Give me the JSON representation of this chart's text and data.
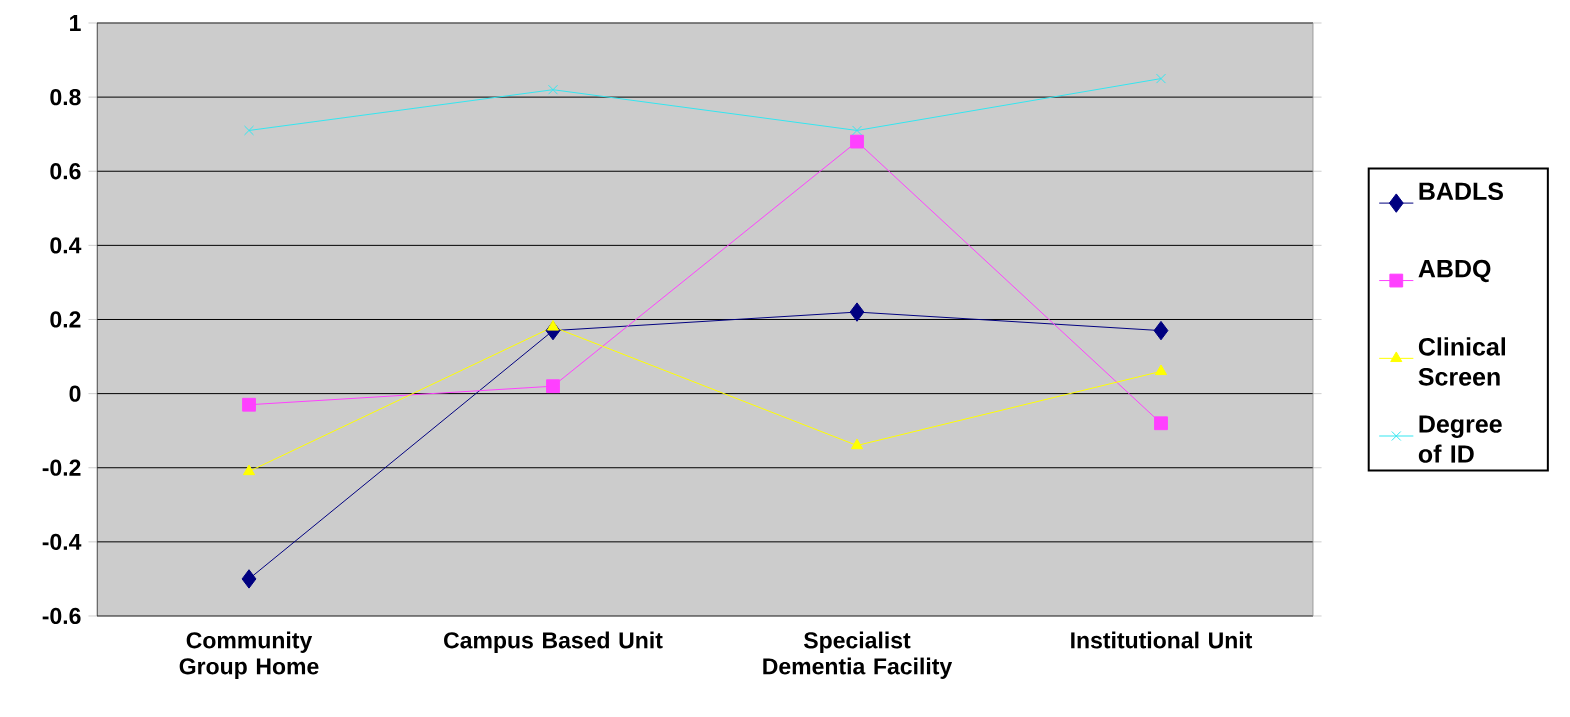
{
  "chart_data": {
    "type": "line",
    "categories": [
      "Community Group Home",
      "Campus Based Unit",
      "Specialist Dementia Facility",
      "Institutional Unit"
    ],
    "series": [
      {
        "name": "BADLS",
        "color": "#000080",
        "marker": "diamond",
        "values": [
          -0.5,
          0.17,
          0.22,
          0.17
        ]
      },
      {
        "name": "ABDQ",
        "color": "#ff40ff",
        "marker": "square",
        "values": [
          -0.03,
          0.02,
          0.68,
          -0.08
        ]
      },
      {
        "name": "Clinical Screen",
        "color": "#ffff00",
        "marker": "triangle",
        "values": [
          -0.21,
          0.18,
          -0.14,
          0.06
        ]
      },
      {
        "name": "Degree of ID",
        "color": "#33e6f0",
        "marker": "cross",
        "values": [
          0.71,
          0.82,
          0.71,
          0.85
        ]
      }
    ],
    "ylim": [
      -0.6,
      1
    ],
    "yticks": [
      -0.6,
      -0.4,
      -0.2,
      0,
      0.2,
      0.4,
      0.6,
      0.8,
      1
    ],
    "grid": "y",
    "legend": "right",
    "line_style": "solid"
  }
}
